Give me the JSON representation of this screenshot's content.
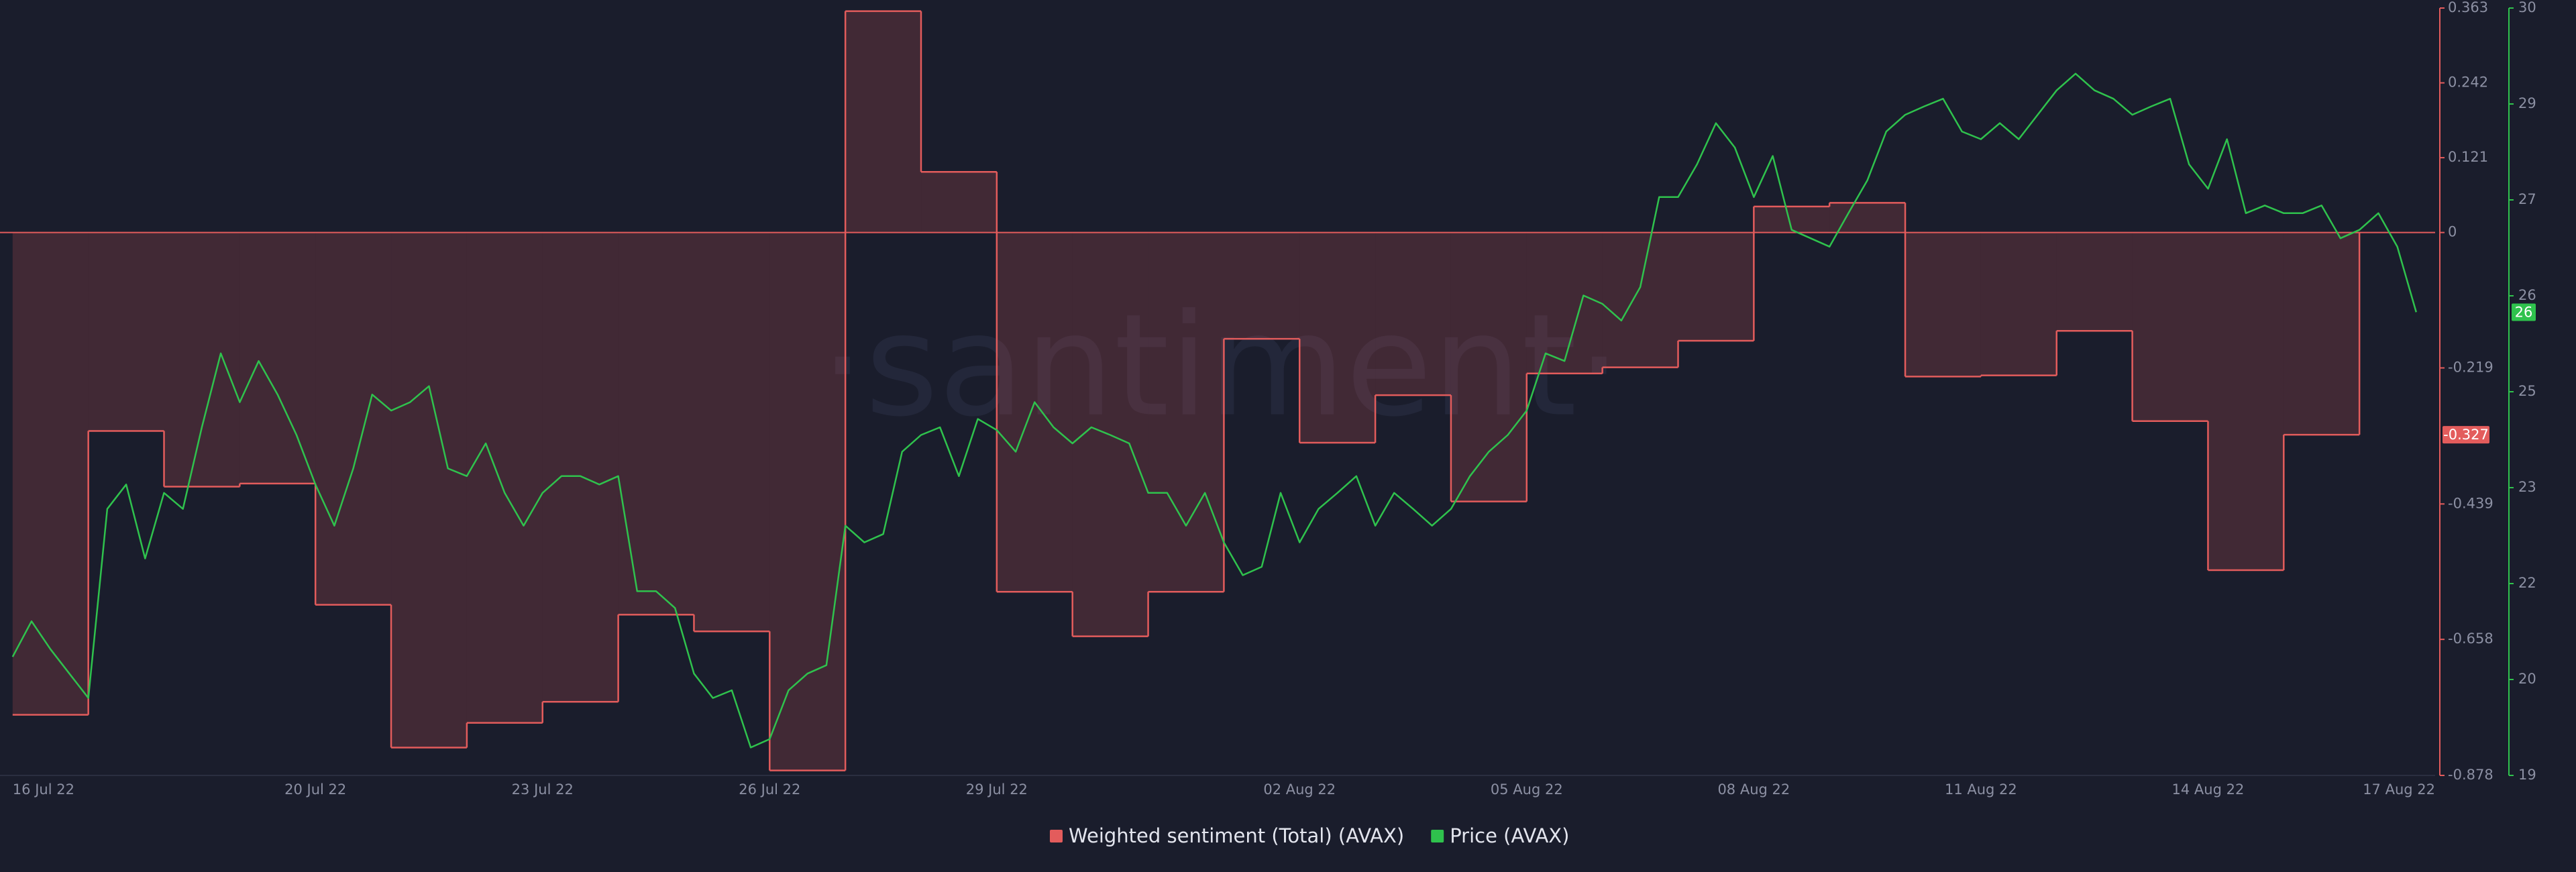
{
  "chart_data": {
    "type": "line",
    "watermark": "·santiment·",
    "xlim": [
      "2022-07-15T20:00",
      "2022-08-17T00:00"
    ],
    "xticks": [
      {
        "value": "2022-07-16T00:00",
        "label": "16 Jul 22"
      },
      {
        "value": "2022-07-20T00:00",
        "label": "20 Jul 22"
      },
      {
        "value": "2022-07-23T00:00",
        "label": "23 Jul 22"
      },
      {
        "value": "2022-07-26T00:00",
        "label": "26 Jul 22"
      },
      {
        "value": "2022-07-29T00:00",
        "label": "29 Jul 22"
      },
      {
        "value": "2022-08-02T00:00",
        "label": "02 Aug 22"
      },
      {
        "value": "2022-08-05T00:00",
        "label": "05 Aug 22"
      },
      {
        "value": "2022-08-08T00:00",
        "label": "08 Aug 22"
      },
      {
        "value": "2022-08-11T00:00",
        "label": "11 Aug 22"
      },
      {
        "value": "2022-08-14T00:00",
        "label": "14 Aug 22"
      },
      {
        "value": "2022-08-17T00:00",
        "label": "17 Aug 22"
      }
    ],
    "ylim": [
      -0.878,
      0.363
    ],
    "yticks": [
      0.363,
      0.242,
      0.121,
      0,
      -0.219,
      -0.439,
      -0.658,
      -0.878
    ],
    "y2lim": [
      19,
      30
    ],
    "y2ticks": [
      30,
      {
        "value": 28.625,
        "label": "29"
      },
      {
        "value": 27.25,
        "label": "27"
      },
      {
        "value": 25.875,
        "label": "26"
      },
      {
        "value": 24.5,
        "label": "25"
      },
      {
        "value": 23.125,
        "label": "23"
      },
      {
        "value": 21.75,
        "label": "22"
      },
      {
        "value": 20.375,
        "label": "20"
      },
      19
    ],
    "series": [
      {
        "name": "Weighted sentiment (Total) (AVAX)",
        "color": "#e35c5c",
        "step": "after",
        "area": true,
        "last_value_label": "-0.327",
        "x": [
          "2022-07-16T00:00",
          "2022-07-17T00:00",
          "2022-07-18T00:00",
          "2022-07-19T00:00",
          "2022-07-20T00:00",
          "2022-07-21T00:00",
          "2022-07-22T00:00",
          "2022-07-23T00:00",
          "2022-07-24T00:00",
          "2022-07-25T00:00",
          "2022-07-26T00:00",
          "2022-07-27T00:00",
          "2022-07-28T00:00",
          "2022-07-29T00:00",
          "2022-07-30T00:00",
          "2022-07-31T00:00",
          "2022-08-01T00:00",
          "2022-08-02T00:00",
          "2022-08-03T00:00",
          "2022-08-04T00:00",
          "2022-08-05T00:00",
          "2022-08-06T00:00",
          "2022-08-07T00:00",
          "2022-08-08T00:00",
          "2022-08-09T00:00",
          "2022-08-10T00:00",
          "2022-08-11T00:00",
          "2022-08-12T00:00",
          "2022-08-13T00:00",
          "2022-08-14T00:00",
          "2022-08-15T00:00"
        ],
        "values": [
          -0.78,
          -0.321,
          -0.411,
          -0.406,
          -0.602,
          -0.833,
          -0.793,
          -0.759,
          -0.618,
          -0.645,
          -0.87,
          0.358,
          0.098,
          -0.581,
          -0.653,
          -0.581,
          -0.172,
          -0.34,
          -0.263,
          -0.435,
          -0.228,
          -0.218,
          -0.175,
          0.042,
          0.048,
          -0.233,
          -0.231,
          -0.159,
          -0.305,
          -0.546,
          -0.327
        ]
      },
      {
        "name": "Price (AVAX)",
        "color": "#2fc24d",
        "axis": "y2",
        "last_value_label": "26",
        "x": [
          "2022-07-16T00:00",
          "2022-07-16T06:00",
          "2022-07-16T12:00",
          "2022-07-16T18:00",
          "2022-07-17T00:00",
          "2022-07-17T06:00",
          "2022-07-17T12:00",
          "2022-07-17T18:00",
          "2022-07-18T00:00",
          "2022-07-18T06:00",
          "2022-07-18T12:00",
          "2022-07-18T18:00",
          "2022-07-19T00:00",
          "2022-07-19T06:00",
          "2022-07-19T12:00",
          "2022-07-19T18:00",
          "2022-07-20T00:00",
          "2022-07-20T06:00",
          "2022-07-20T12:00",
          "2022-07-20T18:00",
          "2022-07-21T00:00",
          "2022-07-21T06:00",
          "2022-07-21T12:00",
          "2022-07-21T18:00",
          "2022-07-22T00:00",
          "2022-07-22T06:00",
          "2022-07-22T12:00",
          "2022-07-22T18:00",
          "2022-07-23T00:00",
          "2022-07-23T06:00",
          "2022-07-23T12:00",
          "2022-07-23T18:00",
          "2022-07-24T00:00",
          "2022-07-24T06:00",
          "2022-07-24T12:00",
          "2022-07-24T18:00",
          "2022-07-25T00:00",
          "2022-07-25T06:00",
          "2022-07-25T12:00",
          "2022-07-25T18:00",
          "2022-07-26T00:00",
          "2022-07-26T06:00",
          "2022-07-26T12:00",
          "2022-07-26T18:00",
          "2022-07-27T00:00",
          "2022-07-27T06:00",
          "2022-07-27T12:00",
          "2022-07-27T18:00",
          "2022-07-28T00:00",
          "2022-07-28T06:00",
          "2022-07-28T12:00",
          "2022-07-28T18:00",
          "2022-07-29T00:00",
          "2022-07-29T06:00",
          "2022-07-29T12:00",
          "2022-07-29T18:00",
          "2022-07-30T00:00",
          "2022-07-30T06:00",
          "2022-07-30T12:00",
          "2022-07-30T18:00",
          "2022-07-31T00:00",
          "2022-07-31T06:00",
          "2022-07-31T12:00",
          "2022-07-31T18:00",
          "2022-08-01T00:00",
          "2022-08-01T06:00",
          "2022-08-01T12:00",
          "2022-08-01T18:00",
          "2022-08-02T00:00",
          "2022-08-02T06:00",
          "2022-08-02T12:00",
          "2022-08-02T18:00",
          "2022-08-03T00:00",
          "2022-08-03T06:00",
          "2022-08-03T12:00",
          "2022-08-03T18:00",
          "2022-08-04T00:00",
          "2022-08-04T06:00",
          "2022-08-04T12:00",
          "2022-08-04T18:00",
          "2022-08-05T00:00",
          "2022-08-05T06:00",
          "2022-08-05T12:00",
          "2022-08-05T18:00",
          "2022-08-06T00:00",
          "2022-08-06T06:00",
          "2022-08-06T12:00",
          "2022-08-06T18:00",
          "2022-08-07T00:00",
          "2022-08-07T06:00",
          "2022-08-07T12:00",
          "2022-08-07T18:00",
          "2022-08-08T00:00",
          "2022-08-08T06:00",
          "2022-08-08T12:00",
          "2022-08-08T18:00",
          "2022-08-09T00:00",
          "2022-08-09T06:00",
          "2022-08-09T12:00",
          "2022-08-09T18:00",
          "2022-08-10T00:00",
          "2022-08-10T06:00",
          "2022-08-10T12:00",
          "2022-08-10T18:00",
          "2022-08-11T00:00",
          "2022-08-11T06:00",
          "2022-08-11T12:00",
          "2022-08-11T18:00",
          "2022-08-12T00:00",
          "2022-08-12T06:00",
          "2022-08-12T12:00",
          "2022-08-12T18:00",
          "2022-08-13T00:00",
          "2022-08-13T06:00",
          "2022-08-13T12:00",
          "2022-08-13T18:00",
          "2022-08-14T00:00",
          "2022-08-14T06:00",
          "2022-08-14T12:00",
          "2022-08-14T18:00",
          "2022-08-15T00:00",
          "2022-08-15T06:00",
          "2022-08-15T12:00",
          "2022-08-15T18:00",
          "2022-08-16T00:00",
          "2022-08-16T06:00",
          "2022-08-16T12:00",
          "2022-08-16T18:00"
        ],
        "values": [
          20.7,
          21.21,
          20.81,
          20.46,
          20.11,
          22.82,
          23.17,
          22.11,
          23.05,
          22.82,
          23.99,
          25.05,
          24.35,
          24.94,
          24.46,
          23.88,
          23.17,
          22.58,
          23.4,
          24.46,
          24.23,
          24.35,
          24.58,
          23.4,
          23.29,
          23.76,
          23.05,
          22.58,
          23.05,
          23.29,
          23.29,
          23.17,
          23.29,
          21.64,
          21.64,
          21.4,
          20.46,
          20.11,
          20.22,
          19.4,
          19.52,
          20.22,
          20.46,
          20.58,
          22.58,
          22.34,
          22.46,
          23.64,
          23.88,
          23.99,
          23.29,
          24.11,
          23.95,
          23.64,
          24.35,
          23.99,
          23.76,
          23.99,
          23.88,
          23.76,
          23.05,
          23.05,
          22.58,
          23.05,
          22.34,
          21.87,
          21.99,
          23.05,
          22.34,
          22.82,
          23.05,
          23.29,
          22.58,
          23.05,
          22.82,
          22.58,
          22.82,
          23.29,
          23.64,
          23.88,
          24.23,
          25.05,
          24.94,
          25.88,
          25.76,
          25.52,
          26.0,
          27.29,
          27.29,
          27.76,
          28.35,
          28.0,
          27.29,
          27.88,
          26.82,
          26.7,
          26.58,
          27.06,
          27.53,
          28.23,
          28.47,
          28.59,
          28.7,
          28.23,
          28.12,
          28.35,
          28.12,
          28.47,
          28.82,
          29.06,
          28.82,
          28.7,
          28.47,
          28.59,
          28.7,
          27.76,
          27.41,
          28.12,
          27.06,
          27.17,
          27.06,
          27.06,
          27.17,
          26.7,
          26.82,
          27.06,
          26.58,
          25.64
        ]
      }
    ]
  }
}
